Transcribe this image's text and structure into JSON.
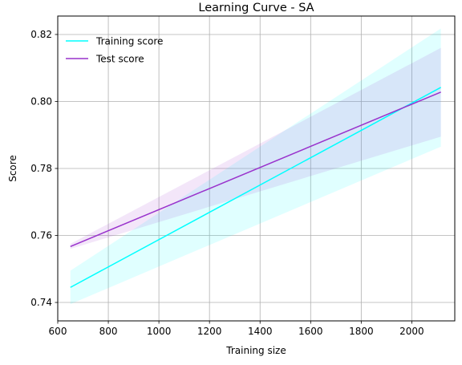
{
  "chart_data": {
    "type": "line",
    "title": "Learning Curve - SA",
    "xlabel": "Training size",
    "ylabel": "Score",
    "xlim": [
      600,
      2170
    ],
    "ylim": [
      0.7345,
      0.8255
    ],
    "xticks": [
      600,
      800,
      1000,
      1200,
      1400,
      1600,
      1800,
      2000
    ],
    "yticks": [
      0.74,
      0.76,
      0.78,
      0.8,
      0.82
    ],
    "ytick_labels": [
      "0.74",
      "0.76",
      "0.78",
      "0.80",
      "0.82"
    ],
    "grid": true,
    "legend_position": "top-left",
    "series": [
      {
        "name": "Training score",
        "color": "#00ffff",
        "x": [
          650,
          2115
        ],
        "y": [
          0.7445,
          0.8042
        ],
        "lower": [
          0.7395,
          0.7865
        ],
        "upper": [
          0.7495,
          0.8218
        ]
      },
      {
        "name": "Test score",
        "color": "#9932cc",
        "x": [
          650,
          2115
        ],
        "y": [
          0.7567,
          0.8028
        ],
        "lower": [
          0.756,
          0.7895
        ],
        "upper": [
          0.7575,
          0.816
        ]
      }
    ]
  }
}
